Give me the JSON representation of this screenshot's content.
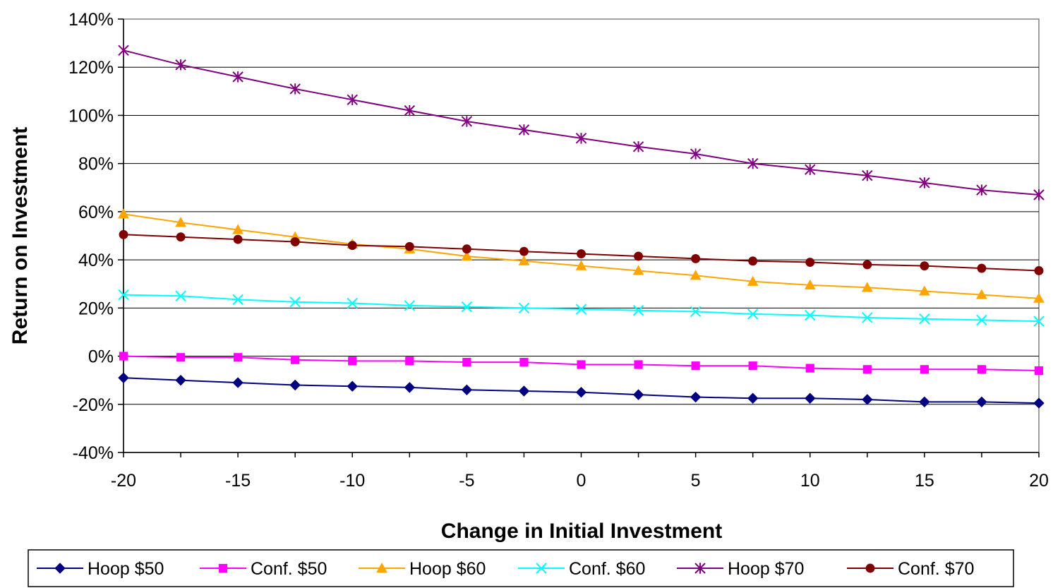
{
  "chart_data": {
    "type": "line",
    "title": "",
    "xlabel": "Change in Initial Investment",
    "ylabel": "Return on Investment",
    "x": [
      -20,
      -17.5,
      -15,
      -12.5,
      -10,
      -7.5,
      -5,
      -2.5,
      0,
      2.5,
      5,
      7.5,
      10,
      12.5,
      15,
      17.5,
      20
    ],
    "xlim": [
      -20,
      20
    ],
    "ylim": [
      -40,
      140
    ],
    "x_ticks": [
      -20,
      -15,
      -10,
      -5,
      0,
      5,
      10,
      15,
      20
    ],
    "x_tick_labels": [
      "-20",
      "-15",
      "-10",
      "-5",
      "0",
      "5",
      "10",
      "15",
      "20"
    ],
    "y_ticks": [
      -40,
      -20,
      0,
      20,
      40,
      60,
      80,
      100,
      120,
      140
    ],
    "y_tick_labels": [
      "-40%",
      "-20%",
      "0%",
      "20%",
      "40%",
      "60%",
      "80%",
      "100%",
      "120%",
      "140%"
    ],
    "grid": "horizontal",
    "legend_position": "bottom",
    "series": [
      {
        "name": "Hoop $50",
        "color": "#000080",
        "marker": "diamond",
        "values": [
          -9,
          -10,
          -11,
          -12,
          -12.5,
          -13,
          -14,
          -14.5,
          -15,
          -16,
          -17,
          -17.5,
          -17.5,
          -18,
          -19,
          -19,
          -19.5
        ]
      },
      {
        "name": "Conf. $50",
        "color": "#FF00FF",
        "marker": "square",
        "values": [
          0,
          -0.5,
          -0.5,
          -1.5,
          -2,
          -2,
          -2.5,
          -2.5,
          -3.5,
          -3.5,
          -4,
          -4,
          -5,
          -5.5,
          -5.5,
          -5.5,
          -6
        ]
      },
      {
        "name": "Hoop $60",
        "color": "#FFA500",
        "marker": "triangle",
        "values": [
          59,
          55.5,
          52.5,
          49.5,
          46.5,
          44.5,
          41.5,
          39.5,
          37.5,
          35.5,
          33.5,
          31,
          29.5,
          28.5,
          27,
          25.5,
          24
        ]
      },
      {
        "name": "Conf. $60",
        "color": "#00FFFF",
        "marker": "x",
        "values": [
          25.5,
          25,
          23.5,
          22.5,
          22,
          21,
          20.5,
          20,
          19.5,
          19,
          18.5,
          17.5,
          17,
          16,
          15.5,
          15,
          14.5
        ]
      },
      {
        "name": "Hoop $70",
        "color": "#800080",
        "marker": "star",
        "values": [
          127,
          121,
          116,
          111,
          106.5,
          102,
          97.5,
          94,
          90.5,
          87,
          84,
          80,
          77.5,
          75,
          72,
          69,
          67
        ]
      },
      {
        "name": "Conf. $70",
        "color": "#800000",
        "marker": "circle",
        "values": [
          50.5,
          49.5,
          48.5,
          47.5,
          46,
          45.5,
          44.5,
          43.5,
          42.5,
          41.5,
          40.5,
          39.5,
          39,
          38,
          37.5,
          36.5,
          35.5
        ]
      }
    ]
  }
}
